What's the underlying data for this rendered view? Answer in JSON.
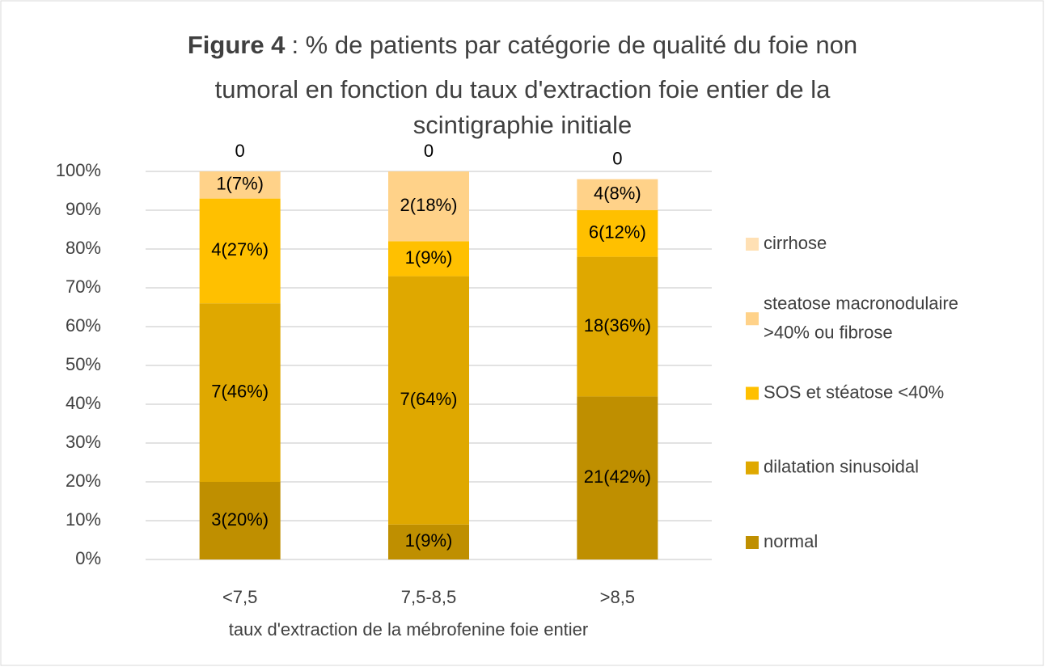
{
  "chart_data": {
    "type": "stacked_bar",
    "title_bold": "Figure 4",
    "title_lines": [
      ": % de patients par catégorie de qualité du foie non",
      "tumoral en fonction du taux d'extraction foie entier de la",
      "scintigraphie initiale"
    ],
    "x_label": "taux d'extraction de la mébrofenine foie entier",
    "categories": [
      "<7,5",
      "7,5-8,5",
      ">8,5"
    ],
    "series": [
      {
        "name": "normal",
        "color": "#bf8f00",
        "values": [
          20,
          9,
          42
        ],
        "value_labels": [
          "3(20%)",
          "1(9%)",
          "21(42%)"
        ]
      },
      {
        "name": "dilatation sinusoidal",
        "color": "#dfa800",
        "values": [
          46,
          64,
          36
        ],
        "value_labels": [
          "7(46%)",
          "7(64%)",
          "18(36%)"
        ]
      },
      {
        "name": "SOS et stéatose <40%",
        "color": "#ffc000",
        "values": [
          27,
          9,
          12
        ],
        "value_labels": [
          "4(27%)",
          "1(9%)",
          "6(12%)"
        ]
      },
      {
        "name": "steatose macronodulaire >40% ou fibrose",
        "color": "#ffd289",
        "values": [
          7,
          18,
          8
        ],
        "value_labels": [
          "1(7%)",
          "2(18%)",
          "4(8%)"
        ]
      },
      {
        "name": "cirrhose",
        "color": "#ffe0b4",
        "values": [
          0,
          0,
          0
        ]
      }
    ],
    "ylim": [
      0,
      100
    ],
    "yticks": [
      {
        "value": 0,
        "label": "0%"
      },
      {
        "value": 10,
        "label": "10%"
      },
      {
        "value": 20,
        "label": "20%"
      },
      {
        "value": 30,
        "label": "30%"
      },
      {
        "value": 40,
        "label": "40%"
      },
      {
        "value": 50,
        "label": "50%"
      },
      {
        "value": 60,
        "label": "60%"
      },
      {
        "value": 70,
        "label": "70%"
      },
      {
        "value": 80,
        "label": "80%"
      },
      {
        "value": 90,
        "label": "90%"
      },
      {
        "value": 100,
        "label": "100%"
      }
    ],
    "grid": true,
    "legend": "right"
  }
}
